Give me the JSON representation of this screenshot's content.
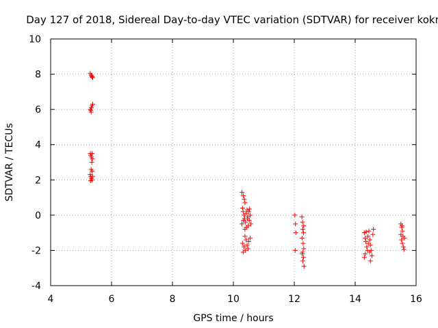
{
  "chart_data": {
    "type": "scatter",
    "title": "Day 127 of 2018, Sidereal Day-to-day VTEC variation (SDTVAR) for receiver kokr",
    "xlabel": "GPS time / hours",
    "ylabel": "SDTVAR / TECUs",
    "xlim": [
      4,
      16
    ],
    "ylim": [
      -4,
      10
    ],
    "xticks": [
      "4",
      "6",
      "8",
      "10",
      "12",
      "14",
      "16"
    ],
    "yticks": [
      "-4",
      "-2",
      "0",
      "2",
      "4",
      "6",
      "8",
      "10"
    ],
    "grid": true,
    "marker": "plus",
    "color": "#ff0000",
    "series": [
      {
        "name": "SDTVAR",
        "points": [
          [
            5.3,
            8.05
          ],
          [
            5.33,
            7.95
          ],
          [
            5.36,
            7.85
          ],
          [
            5.38,
            7.8
          ],
          [
            5.35,
            7.9
          ],
          [
            5.3,
            6.0
          ],
          [
            5.32,
            5.95
          ],
          [
            5.34,
            6.1
          ],
          [
            5.36,
            6.2
          ],
          [
            5.38,
            6.3
          ],
          [
            5.33,
            5.85
          ],
          [
            5.3,
            3.5
          ],
          [
            5.32,
            3.4
          ],
          [
            5.34,
            3.3
          ],
          [
            5.36,
            3.5
          ],
          [
            5.37,
            3.2
          ],
          [
            5.35,
            3.0
          ],
          [
            5.33,
            2.6
          ],
          [
            5.36,
            2.5
          ],
          [
            5.3,
            2.3
          ],
          [
            5.32,
            2.2
          ],
          [
            5.34,
            2.1
          ],
          [
            5.36,
            2.0
          ],
          [
            5.38,
            2.2
          ],
          [
            5.31,
            1.95
          ],
          [
            10.28,
            1.3
          ],
          [
            10.33,
            1.1
          ],
          [
            10.36,
            0.9
          ],
          [
            10.38,
            0.7
          ],
          [
            10.3,
            0.4
          ],
          [
            10.32,
            0.2
          ],
          [
            10.35,
            0.0
          ],
          [
            10.37,
            -0.2
          ],
          [
            10.4,
            -0.4
          ],
          [
            10.28,
            -0.5
          ],
          [
            10.42,
            0.1
          ],
          [
            10.45,
            0.3
          ],
          [
            10.47,
            -0.1
          ],
          [
            10.5,
            0.2
          ],
          [
            10.52,
            -0.3
          ],
          [
            10.55,
            0.0
          ],
          [
            10.57,
            -0.5
          ],
          [
            10.43,
            -0.7
          ],
          [
            10.48,
            -0.6
          ],
          [
            10.38,
            -0.8
          ],
          [
            10.33,
            -0.3
          ],
          [
            10.53,
            0.35
          ],
          [
            10.46,
            -0.2
          ],
          [
            10.3,
            -1.6
          ],
          [
            10.35,
            -1.8
          ],
          [
            10.4,
            -2.0
          ],
          [
            10.45,
            -1.7
          ],
          [
            10.5,
            -1.5
          ],
          [
            10.55,
            -1.3
          ],
          [
            10.32,
            -2.1
          ],
          [
            10.42,
            -1.4
          ],
          [
            10.48,
            -1.9
          ],
          [
            10.38,
            -1.2
          ],
          [
            12.02,
            0.0
          ],
          [
            12.04,
            -0.5
          ],
          [
            12.05,
            -1.0
          ],
          [
            12.03,
            -2.0
          ],
          [
            12.25,
            -0.1
          ],
          [
            12.27,
            -0.4
          ],
          [
            12.28,
            -0.8
          ],
          [
            12.3,
            -1.0
          ],
          [
            12.26,
            -1.3
          ],
          [
            12.29,
            -1.6
          ],
          [
            12.31,
            -1.9
          ],
          [
            12.27,
            -2.1
          ],
          [
            12.3,
            -2.4
          ],
          [
            12.28,
            -2.6
          ],
          [
            12.32,
            -2.9
          ],
          [
            12.26,
            -2.2
          ],
          [
            12.31,
            -0.6
          ],
          [
            14.3,
            -1.0
          ],
          [
            14.33,
            -1.3
          ],
          [
            14.35,
            -1.5
          ],
          [
            14.38,
            -1.8
          ],
          [
            14.4,
            -2.0
          ],
          [
            14.33,
            -2.2
          ],
          [
            14.3,
            -2.4
          ],
          [
            14.42,
            -1.2
          ],
          [
            14.45,
            -0.9
          ],
          [
            14.48,
            -1.4
          ],
          [
            14.5,
            -1.7
          ],
          [
            14.52,
            -2.0
          ],
          [
            14.55,
            -2.3
          ],
          [
            14.5,
            -2.6
          ],
          [
            14.58,
            -1.1
          ],
          [
            14.6,
            -0.8
          ],
          [
            14.43,
            -1.6
          ],
          [
            14.36,
            -0.95
          ],
          [
            14.47,
            -2.1
          ],
          [
            15.5,
            -0.5
          ],
          [
            15.53,
            -0.7
          ],
          [
            15.55,
            -0.9
          ],
          [
            15.57,
            -1.2
          ],
          [
            15.52,
            -1.4
          ],
          [
            15.55,
            -1.6
          ],
          [
            15.58,
            -1.8
          ],
          [
            15.6,
            -1.95
          ],
          [
            15.5,
            -1.1
          ],
          [
            15.62,
            -1.3
          ],
          [
            15.54,
            -0.6
          ]
        ]
      }
    ]
  }
}
